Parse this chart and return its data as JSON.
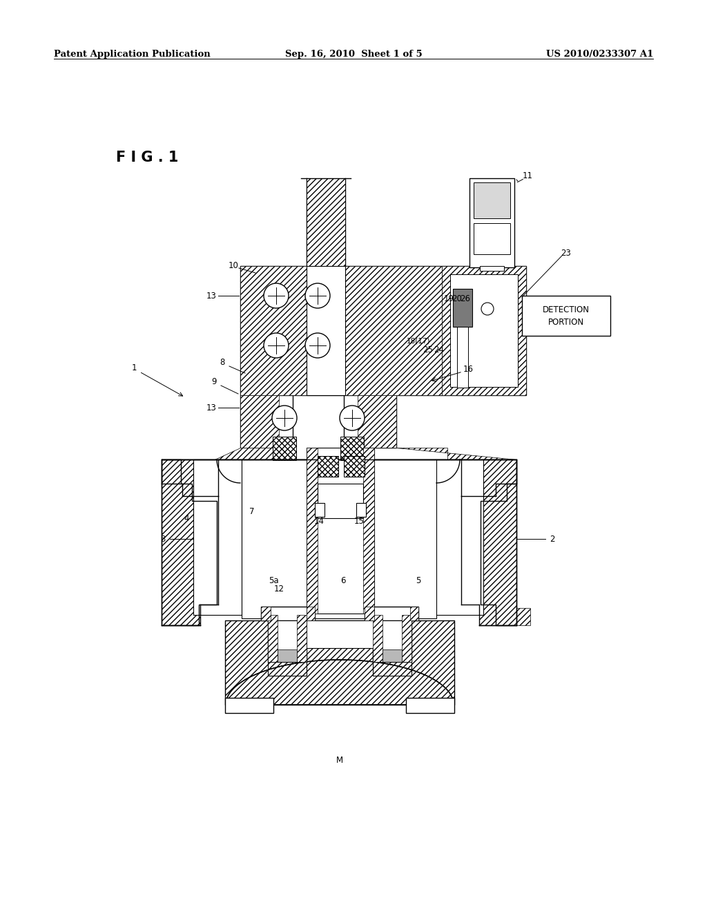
{
  "bg": "#ffffff",
  "lc": "#000000",
  "header_left": "Patent Application Publication",
  "header_center": "Sep. 16, 2010  Sheet 1 of 5",
  "header_right": "US 2010/0233307 A1",
  "fig_label": "F I G . 1",
  "detection_text": "DETECTION\nPORTION"
}
